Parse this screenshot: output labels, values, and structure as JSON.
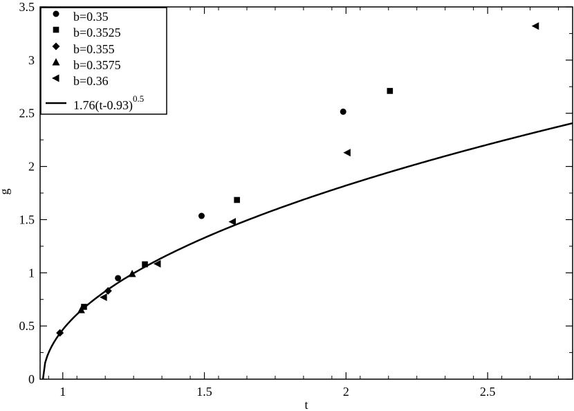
{
  "chart_data": {
    "type": "scatter",
    "xlabel": "t",
    "ylabel": "g",
    "xlim": [
      0.92,
      2.8
    ],
    "ylim": [
      0,
      3.5
    ],
    "xticks": [
      1,
      1.5,
      2,
      2.5
    ],
    "xtick_labels": [
      "1",
      "1.5",
      "2",
      "2.5"
    ],
    "yticks": [
      0,
      0.5,
      1,
      1.5,
      2,
      2.5,
      3,
      3.5
    ],
    "ytick_labels": [
      "0",
      "0.5",
      "1",
      "1.5",
      "2",
      "2.5",
      "3",
      "3.5"
    ],
    "grid": false,
    "legend_position": "top-left",
    "series": [
      {
        "name": "b=0.35",
        "marker": "circle",
        "points": [
          [
            1.195,
            0.95
          ],
          [
            1.49,
            1.535
          ],
          [
            1.99,
            2.515
          ]
        ]
      },
      {
        "name": "b=0.3525",
        "marker": "square",
        "points": [
          [
            1.075,
            0.68
          ],
          [
            1.29,
            1.08
          ],
          [
            1.615,
            1.685
          ],
          [
            2.155,
            2.71
          ]
        ]
      },
      {
        "name": "b=0.355",
        "marker": "diamond",
        "points": [
          [
            0.99,
            0.435
          ],
          [
            1.16,
            0.83
          ]
        ]
      },
      {
        "name": "b=0.3575",
        "marker": "triangle-up",
        "points": [
          [
            1.065,
            0.65
          ],
          [
            1.245,
            0.99
          ]
        ]
      },
      {
        "name": "b=0.36",
        "marker": "triangle-left",
        "points": [
          [
            1.145,
            0.77
          ],
          [
            1.335,
            1.085
          ],
          [
            1.6,
            1.48
          ],
          [
            2.005,
            2.13
          ],
          [
            2.67,
            3.32
          ]
        ]
      }
    ],
    "fit": {
      "name_base": "1.76(t-0.93)",
      "name_exp": "0.5",
      "coef": 1.76,
      "t0": 0.93,
      "exponent": 0.5,
      "x_range": [
        0.93,
        2.8
      ]
    }
  }
}
